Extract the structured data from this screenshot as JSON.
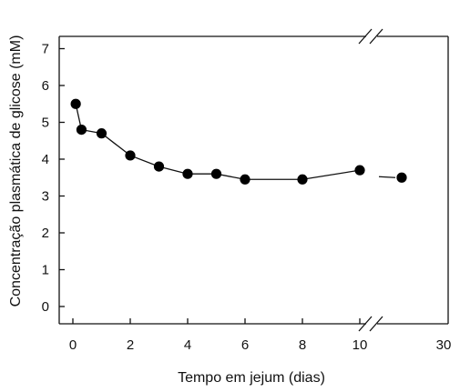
{
  "chart_data": {
    "type": "line",
    "title": "",
    "xlabel": "Tempo em jejum (dias)",
    "ylabel": "Concentração plasmática de glicose (mM)",
    "x_ticks": [
      "0",
      "2",
      "4",
      "6",
      "8",
      "10",
      "30"
    ],
    "y_ticks": [
      "0",
      "1",
      "2",
      "3",
      "4",
      "5",
      "6",
      "7"
    ],
    "ylim": [
      -0.6,
      7.6
    ],
    "x_axis_break_between": [
      10,
      30
    ],
    "grid": false,
    "legend": "none",
    "colors": {
      "line": "#111111",
      "marker": "#000000",
      "axis": "#111111"
    },
    "series": [
      {
        "x": [
          0.1,
          0.3,
          1,
          2,
          3,
          4,
          5,
          6,
          8,
          10
        ],
        "values": [
          5.5,
          4.8,
          4.7,
          4.1,
          3.8,
          3.6,
          3.6,
          3.45,
          3.45,
          3.7
        ]
      },
      {
        "x": [
          30
        ],
        "values": [
          3.5
        ]
      }
    ]
  }
}
